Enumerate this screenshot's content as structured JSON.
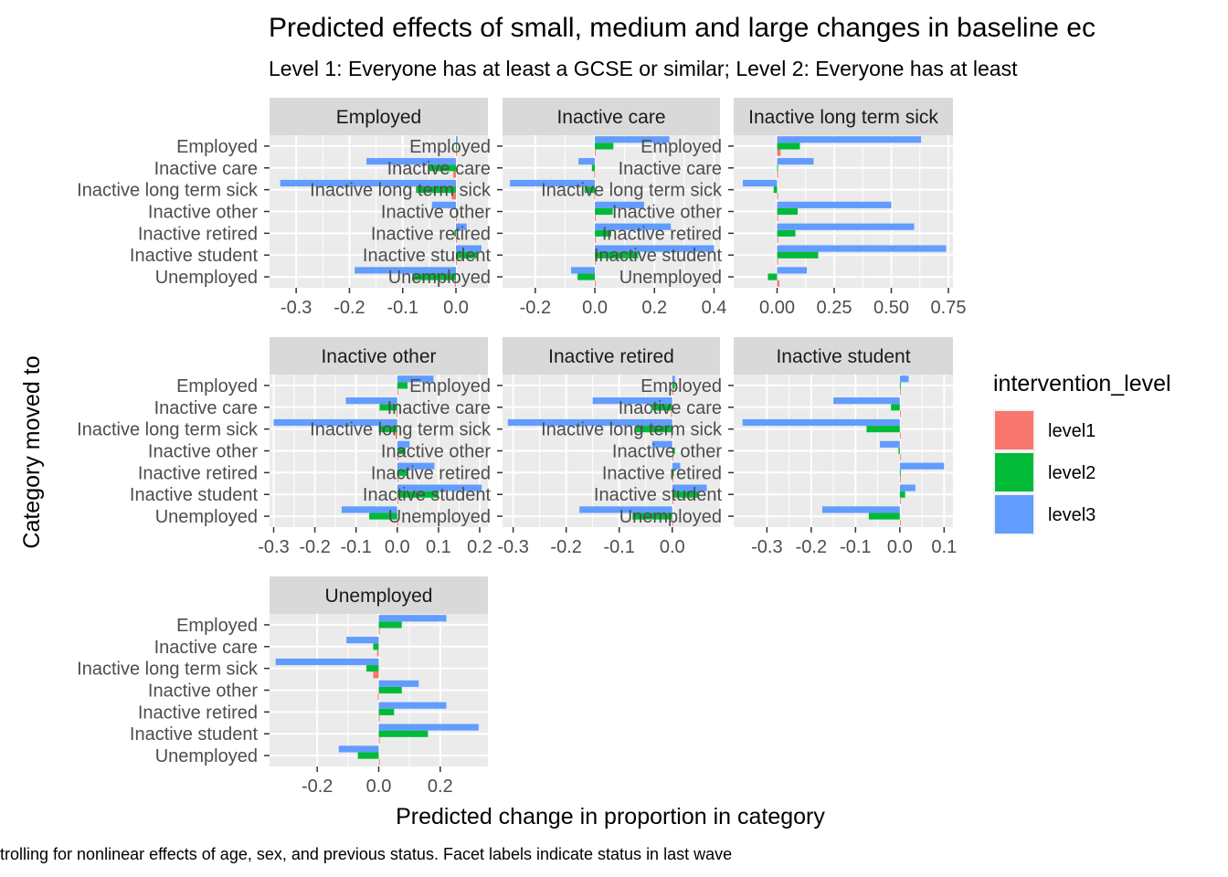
{
  "chart_data": {
    "type": "bar",
    "orientation": "horizontal",
    "title": "Predicted effects of small, medium and large changes in baseline ec",
    "subtitle": "Level 1: Everyone has at least a GCSE or similar; Level 2: Everyone has at least",
    "xlabel": "Predicted change in proportion in category",
    "ylabel": "Category moved to",
    "caption": "trolling for nonlinear effects of age, sex, and previous status. Facet labels indicate status in last wave",
    "legend": {
      "title": "intervention_level",
      "position": "right",
      "entries": [
        {
          "name": "level1",
          "color": "#F8766D"
        },
        {
          "name": "level2",
          "color": "#00BA38"
        },
        {
          "name": "level3",
          "color": "#619CFF"
        }
      ]
    },
    "categories": [
      "Unemployed",
      "Inactive student",
      "Inactive retired",
      "Inactive other",
      "Inactive long term sick",
      "Inactive care",
      "Employed"
    ],
    "grid": true,
    "facets": [
      {
        "label": "Employed",
        "xlim": [
          -0.35,
          0.06
        ],
        "ticks": [
          {
            "value": -0.3,
            "label": "-0.3"
          },
          {
            "value": -0.2,
            "label": "-0.2"
          },
          {
            "value": -0.1,
            "label": "-0.1"
          },
          {
            "value": 0.0,
            "label": "0.0"
          }
        ],
        "series": [
          {
            "name": "level1",
            "values": [
              -0.002,
              0.0,
              0.0,
              0.0,
              -0.008,
              -0.005,
              0.0
            ]
          },
          {
            "name": "level2",
            "values": [
              -0.082,
              0.04,
              -0.003,
              0.0,
              -0.075,
              -0.05,
              0.002
            ]
          },
          {
            "name": "level3",
            "values": [
              -0.19,
              0.048,
              0.02,
              -0.045,
              -0.33,
              -0.168,
              0.003
            ]
          }
        ]
      },
      {
        "label": "Inactive care",
        "xlim": [
          -0.31,
          0.42
        ],
        "ticks": [
          {
            "value": -0.2,
            "label": "-0.2"
          },
          {
            "value": 0.0,
            "label": "0.0"
          },
          {
            "value": 0.2,
            "label": "0.2"
          },
          {
            "value": 0.4,
            "label": "0.4"
          }
        ],
        "series": [
          {
            "name": "level1",
            "values": [
              0.0,
              0.0,
              0.0,
              0.0,
              -0.002,
              -0.002,
              0.002
            ]
          },
          {
            "name": "level2",
            "values": [
              -0.058,
              0.145,
              0.055,
              0.06,
              -0.035,
              -0.01,
              0.062
            ]
          },
          {
            "name": "level3",
            "values": [
              -0.08,
              0.4,
              0.255,
              0.165,
              -0.285,
              -0.055,
              0.25
            ]
          }
        ]
      },
      {
        "label": "Inactive long term sick",
        "xlim": [
          -0.19,
          0.77
        ],
        "ticks": [
          {
            "value": 0.0,
            "label": "0.00"
          },
          {
            "value": 0.25,
            "label": "0.25"
          },
          {
            "value": 0.5,
            "label": "0.50"
          },
          {
            "value": 0.75,
            "label": "0.75"
          }
        ],
        "series": [
          {
            "name": "level1",
            "values": [
              0.01,
              0.0,
              0.0,
              0.0,
              0.0,
              0.0,
              0.015
            ]
          },
          {
            "name": "level2",
            "values": [
              -0.04,
              0.18,
              0.08,
              0.09,
              -0.015,
              0.0,
              0.1
            ]
          },
          {
            "name": "level3",
            "values": [
              0.13,
              0.74,
              0.6,
              0.5,
              -0.15,
              0.16,
              0.63
            ]
          }
        ]
      },
      {
        "label": "Inactive other",
        "xlim": [
          -0.31,
          0.22
        ],
        "ticks": [
          {
            "value": -0.3,
            "label": "-0.3"
          },
          {
            "value": -0.2,
            "label": "-0.2"
          },
          {
            "value": -0.1,
            "label": "-0.1"
          },
          {
            "value": 0.0,
            "label": "0.0"
          },
          {
            "value": 0.1,
            "label": "0.1"
          },
          {
            "value": 0.2,
            "label": "0.2"
          }
        ],
        "series": [
          {
            "name": "level1",
            "values": [
              0.0,
              0.0,
              0.0,
              0.0,
              -0.004,
              -0.002,
              0.0
            ]
          },
          {
            "name": "level2",
            "values": [
              -0.068,
              0.1,
              0.025,
              0.02,
              -0.045,
              -0.043,
              0.025
            ]
          },
          {
            "name": "level3",
            "values": [
              -0.135,
              0.205,
              0.09,
              0.03,
              -0.3,
              -0.125,
              0.088
            ]
          }
        ]
      },
      {
        "label": "Inactive retired",
        "xlim": [
          -0.32,
          0.09
        ],
        "ticks": [
          {
            "value": -0.3,
            "label": "-0.3"
          },
          {
            "value": -0.2,
            "label": "-0.2"
          },
          {
            "value": -0.1,
            "label": "-0.1"
          },
          {
            "value": 0.0,
            "label": "0.0"
          }
        ],
        "series": [
          {
            "name": "level1",
            "values": [
              0.0,
              0.0,
              0.0,
              0.0,
              -0.002,
              -0.002,
              0.0
            ]
          },
          {
            "name": "level2",
            "values": [
              -0.075,
              0.05,
              0.003,
              0.005,
              -0.068,
              -0.04,
              0.005
            ]
          },
          {
            "name": "level3",
            "values": [
              -0.175,
              0.065,
              0.015,
              -0.038,
              -0.31,
              -0.15,
              0.005
            ]
          }
        ]
      },
      {
        "label": "Inactive student",
        "xlim": [
          -0.375,
          0.12
        ],
        "ticks": [
          {
            "value": -0.3,
            "label": "-0.3"
          },
          {
            "value": -0.2,
            "label": "-0.2"
          },
          {
            "value": -0.1,
            "label": "-0.1"
          },
          {
            "value": 0.0,
            "label": "0.0"
          },
          {
            "value": 0.1,
            "label": "0.1"
          }
        ],
        "series": [
          {
            "name": "level1",
            "values": [
              0.0,
              0.0,
              0.0,
              0.0,
              0.0,
              0.0,
              0.0
            ]
          },
          {
            "name": "level2",
            "values": [
              -0.07,
              0.012,
              0.0,
              -0.003,
              -0.075,
              -0.02,
              0.002
            ]
          },
          {
            "name": "level3",
            "values": [
              -0.175,
              0.035,
              0.1,
              -0.045,
              -0.355,
              -0.15,
              0.02
            ]
          }
        ]
      },
      {
        "label": "Unemployed",
        "xlim": [
          -0.355,
          0.355
        ],
        "ticks": [
          {
            "value": -0.2,
            "label": "-0.2"
          },
          {
            "value": 0.0,
            "label": "0.0"
          },
          {
            "value": 0.2,
            "label": "0.2"
          }
        ],
        "series": [
          {
            "name": "level1",
            "values": [
              0.0,
              0.0,
              0.0,
              -0.003,
              -0.018,
              -0.005,
              0.002
            ]
          },
          {
            "name": "level2",
            "values": [
              -0.068,
              0.16,
              0.05,
              0.075,
              -0.04,
              -0.018,
              0.075
            ]
          },
          {
            "name": "level3",
            "values": [
              -0.13,
              0.325,
              0.22,
              0.13,
              -0.335,
              -0.105,
              0.22
            ]
          }
        ]
      }
    ]
  }
}
